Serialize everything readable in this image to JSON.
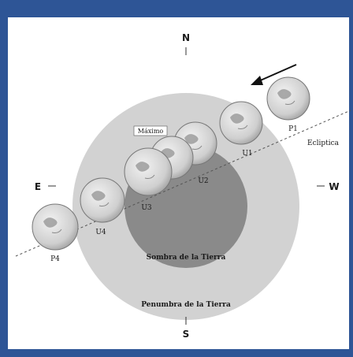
{
  "compass": {
    "north": "N",
    "south": "S",
    "east": "E",
    "west": "W"
  },
  "labels": {
    "ecliptic": "Ecliptica",
    "umbra": "Sombra de la Tierra",
    "penumbra": "Penumbra de la Tierra",
    "maximum": "Máximo"
  },
  "moon_positions": [
    {
      "id": "P1",
      "label": "P1"
    },
    {
      "id": "U1",
      "label": "U1"
    },
    {
      "id": "U2",
      "label": "U2"
    },
    {
      "id": "U3",
      "label": "U3"
    },
    {
      "id": "U4",
      "label": "U4"
    },
    {
      "id": "P4",
      "label": "P4"
    }
  ],
  "colors": {
    "frame": "#2e5596",
    "penumbra": "#d2d2d2",
    "umbra": "#8a8a8a",
    "moon": "#e6e6e6"
  }
}
